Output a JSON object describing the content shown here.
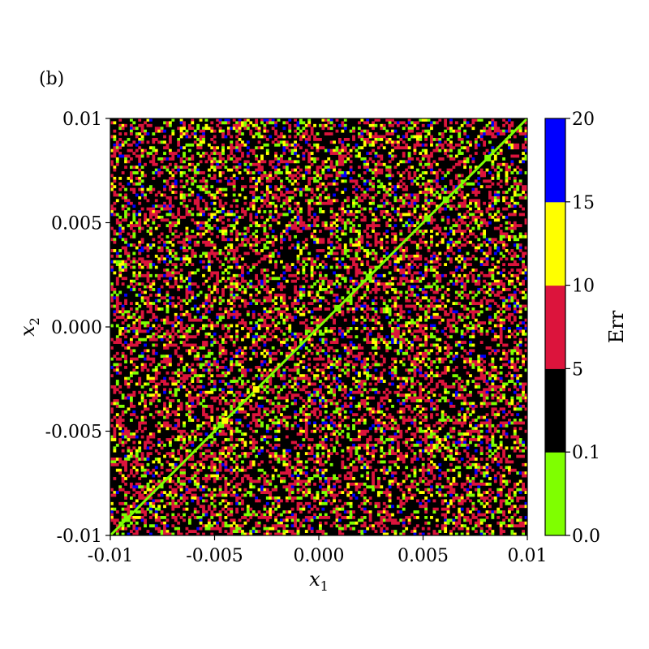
{
  "figure": {
    "panel_label": "(b)"
  },
  "chart_data": {
    "type": "heatmap",
    "title": "",
    "panel_label": "(b)",
    "xlabel": "x",
    "xlabel_sub": "1",
    "ylabel": "x",
    "ylabel_sub": "2",
    "xlim": [
      -0.01,
      0.01
    ],
    "ylim": [
      -0.01,
      0.01
    ],
    "x_ticks": [
      -0.01,
      -0.005,
      0.0,
      0.005,
      0.01
    ],
    "x_tick_labels": [
      "-0.01",
      "-0.005",
      "0.000",
      "0.005",
      "0.01"
    ],
    "y_ticks": [
      -0.01,
      -0.005,
      0.0,
      0.005,
      0.01
    ],
    "y_tick_labels": [
      "-0.01",
      "-0.005",
      "0.000",
      "0.005",
      "0.01"
    ],
    "grid_resolution": 150,
    "grid": false,
    "background_class": "black",
    "diagonal": {
      "description": "line x2 = x1",
      "class": "green",
      "x_range": [
        -0.01,
        0.01
      ]
    },
    "diagonal_blobs": [
      {
        "x": -0.0092,
        "y": -0.0092,
        "class": "green"
      },
      {
        "x": -0.0047,
        "y": -0.0047,
        "class": "green"
      },
      {
        "x": -0.0045,
        "y": -0.0045,
        "class": "yellow"
      },
      {
        "x": -0.003,
        "y": -0.003,
        "class": "yellow"
      },
      {
        "x": 0.0009,
        "y": 0.0009,
        "class": "green"
      },
      {
        "x": 0.0024,
        "y": 0.0024,
        "class": "green"
      },
      {
        "x": 0.0052,
        "y": 0.0052,
        "class": "green"
      },
      {
        "x": 0.0061,
        "y": 0.0061,
        "class": "green"
      },
      {
        "x": 0.0081,
        "y": 0.0081,
        "class": "green"
      }
    ],
    "approx_class_fractions": {
      "green": 0.08,
      "black": 0.6,
      "red": 0.23,
      "yellow": 0.06,
      "blue": 0.03
    },
    "colorbar": {
      "label": "Err",
      "bins": [
        {
          "from": 0.0,
          "to": 0.1,
          "color": "#7fff00",
          "class": "green"
        },
        {
          "from": 0.1,
          "to": 5,
          "color": "#000000",
          "class": "black"
        },
        {
          "from": 5,
          "to": 10,
          "color": "#dc143c",
          "class": "red"
        },
        {
          "from": 10,
          "to": 15,
          "color": "#ffff00",
          "class": "yellow"
        },
        {
          "from": 15,
          "to": 20,
          "color": "#0000ff",
          "class": "blue"
        }
      ],
      "tick_labels": [
        "0.0",
        "0.1",
        "5",
        "10",
        "15",
        "20"
      ]
    }
  }
}
